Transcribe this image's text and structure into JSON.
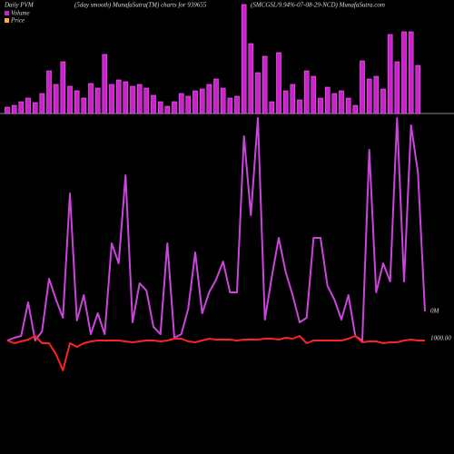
{
  "chart_data": {
    "type": "pvm",
    "title": "Daily PVM",
    "subtitle": "(5day smooth) MunafaSutra(TM) charts for 939655",
    "symbol_label": "(SMCGSL/9.94%-07-08-29-NCD) MunafaSutra.com",
    "categories": [
      null,
      null,
      null,
      null,
      null,
      null,
      null,
      null,
      null,
      null,
      null,
      null,
      null,
      null,
      null,
      null,
      null,
      null,
      null,
      null,
      null,
      null,
      null,
      null,
      null,
      null,
      null,
      null,
      null,
      null,
      null,
      null,
      null,
      null,
      null,
      null,
      null,
      null,
      null,
      null,
      null,
      null,
      null,
      null,
      null,
      null,
      null,
      null,
      null,
      null,
      null,
      null,
      null,
      null,
      null,
      null,
      null,
      null,
      null,
      null,
      null
    ],
    "series": [
      {
        "name": "Volume",
        "color": "#cc22cc",
        "ylim": [
          0,
          120
        ],
        "values": [
          7,
          9,
          13,
          17,
          12,
          22,
          47,
          32,
          57,
          30,
          25,
          17,
          33,
          28,
          65,
          32,
          37,
          35,
          30,
          32,
          28,
          20,
          13,
          8,
          13,
          22,
          19,
          25,
          27,
          32,
          38,
          28,
          17,
          19,
          120,
          77,
          45,
          63,
          13,
          67,
          25,
          32,
          15,
          47,
          41,
          17,
          29,
          22,
          25,
          17,
          9,
          58,
          38,
          41,
          27,
          87,
          57,
          90,
          90,
          53,
          null
        ]
      },
      {
        "name": "Price",
        "color": "#ff2222",
        "ylim": [
          875,
          1370
        ],
        "values": [
          1000,
          997,
          999,
          1001,
          1005,
          997,
          997,
          985,
          967,
          997,
          993,
          997,
          999,
          1000,
          1000,
          1000,
          1000,
          999,
          998,
          999,
          1000,
          1000,
          999,
          1000,
          1002,
          1002,
          999,
          998,
          1000,
          1002,
          1001,
          1001,
          1001,
          1000,
          1001,
          1001,
          1001,
          1002,
          1002,
          1001,
          1003,
          1002,
          1005,
          997,
          1000,
          1000,
          1000,
          1000,
          1000,
          1002,
          1005,
          998,
          999,
          999,
          997,
          998,
          998,
          1000,
          1001,
          1000,
          1000
        ]
      }
    ],
    "pvm": {
      "color": "#cc44dd",
      "ylim": [
        -125,
        370
      ],
      "values": [
        0,
        3,
        5,
        42,
        0,
        10,
        68,
        45,
        25,
        162,
        22,
        50,
        7,
        30,
        7,
        107,
        85,
        182,
        20,
        63,
        55,
        15,
        7,
        107,
        3,
        7,
        35,
        97,
        30,
        53,
        67,
        87,
        53,
        53,
        225,
        138,
        245,
        23,
        70,
        113,
        75,
        50,
        20,
        25,
        113,
        113,
        60,
        45,
        23,
        50,
        5,
        0,
        210,
        53,
        85,
        65,
        245,
        65,
        237,
        185,
        32
      ]
    },
    "pvm_label": "0M",
    "price_label": "1000.00"
  }
}
